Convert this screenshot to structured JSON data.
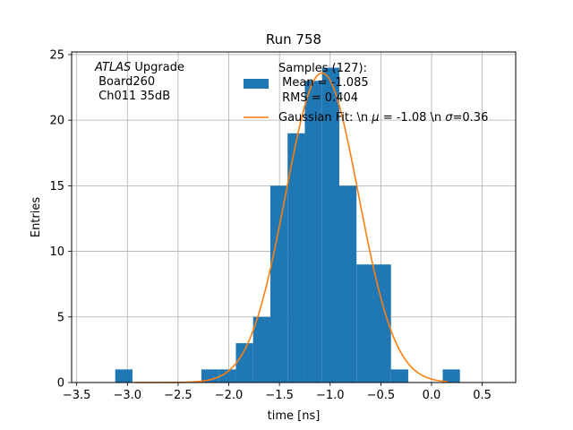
{
  "chart_data": {
    "type": "bar",
    "title": "Run 758",
    "xlabel": "time [ns]",
    "ylabel": "Entries",
    "xlim": [
      -3.55,
      0.83
    ],
    "ylim": [
      0,
      25.2
    ],
    "grid": true,
    "xticks": [
      -3.5,
      -3.0,
      -2.5,
      -2.0,
      -1.5,
      -1.0,
      -0.5,
      0.0,
      0.5
    ],
    "xtick_labels": [
      "−3.5",
      "−3.0",
      "−2.5",
      "−2.0",
      "−1.5",
      "−1.0",
      "−0.5",
      "0.0",
      "0.5"
    ],
    "yticks": [
      0,
      5,
      10,
      15,
      20,
      25
    ],
    "ytick_labels": [
      "0",
      "5",
      "10",
      "15",
      "20",
      "25"
    ],
    "bin_edges": [
      -3.12,
      -2.95,
      -2.78,
      -2.61,
      -2.44,
      -2.27,
      -2.1,
      -1.93,
      -1.76,
      -1.59,
      -1.42,
      -1.25,
      -1.08,
      -0.91,
      -0.74,
      -0.57,
      -0.4,
      -0.23,
      -0.06,
      0.11,
      0.28
    ],
    "counts": [
      1,
      0,
      0,
      0,
      0,
      1,
      1,
      3,
      5,
      15,
      19,
      23,
      24,
      15,
      9,
      9,
      1,
      0,
      0,
      1
    ],
    "series": [
      {
        "name": "Samples (127):\n Mean = -1.085\n RMS = 0.404",
        "type": "histogram",
        "color": "#1f77b4"
      },
      {
        "name": "Gaussian Fit: \\n $\\mu$ = -1.08 \\n $\\sigma$=0.36",
        "type": "line",
        "color": "#ff7f0e",
        "amplitude": 23.6,
        "mu": -1.08,
        "sigma": 0.36,
        "x_range": [
          -2.93,
          0.16
        ]
      }
    ],
    "legend_position": "top-right",
    "legend_labels": {
      "samples_line1": "Samples (127):",
      "samples_line2": " Mean = -1.085",
      "samples_line3": " RMS = 0.404",
      "fit_prefix": "Gaussian Fit: \\n ",
      "fit_mu_symbol": "μ",
      "fit_mu_rest": " = -1.08 \\n ",
      "fit_sigma_symbol": "σ",
      "fit_sigma_rest": "=0.36"
    },
    "annotation": {
      "line1_italic": "ATLAS",
      "line1_rest": " Upgrade",
      "line2": " Board260",
      "line3": " Ch011 35dB"
    }
  }
}
